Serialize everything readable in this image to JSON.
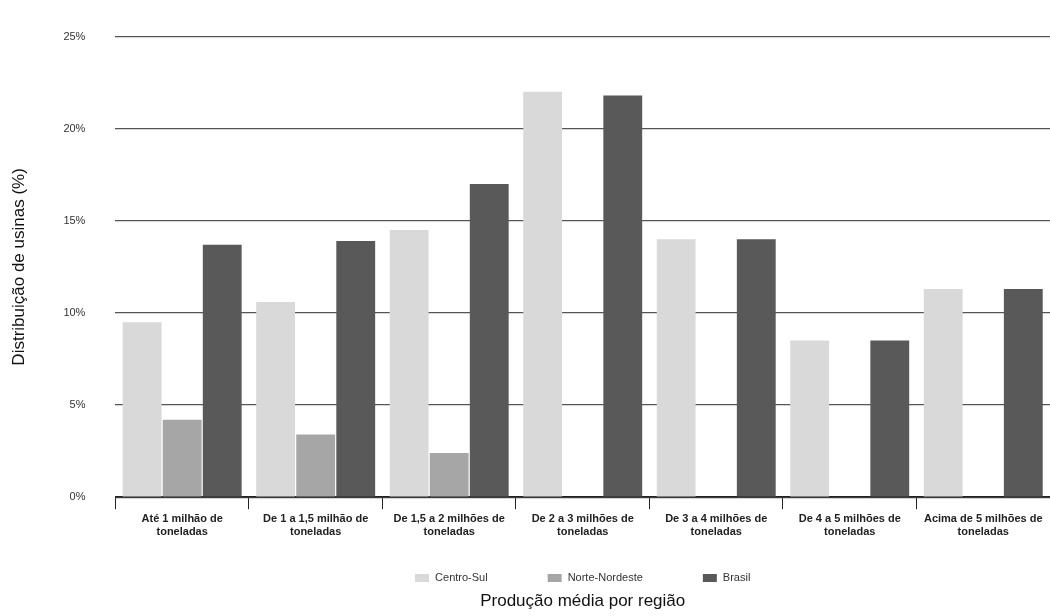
{
  "chart_data": {
    "type": "bar",
    "xlabel": "Produção média por região",
    "ylabel": "Distribuição de usinas (%)",
    "categories": [
      "Até 1 milhão de toneladas",
      "De 1 a 1,5 milhão de toneladas",
      "De 1,5 a 2 milhões de toneladas",
      "De 2 a 3 milhões de toneladas",
      "De 3 a 4 milhões de toneladas",
      "De 4 a 5 milhões de toneladas",
      "Acima de 5 milhões de toneladas"
    ],
    "series": [
      {
        "name": "Centro-Sul",
        "color": "#d9d9d9",
        "values": [
          9.5,
          10.6,
          14.5,
          22.0,
          14.0,
          8.5,
          11.3
        ]
      },
      {
        "name": "Norte-Nordeste",
        "color": "#a6a6a6",
        "values": [
          4.2,
          3.4,
          2.4,
          null,
          null,
          null,
          null
        ]
      },
      {
        "name": "Brasil",
        "color": "#595959",
        "values": [
          13.7,
          13.9,
          17.0,
          21.8,
          14.0,
          8.5,
          11.3
        ]
      }
    ],
    "ylim": [
      0,
      25
    ],
    "yticks": [
      {
        "value": 0,
        "label": "0%"
      },
      {
        "value": 5,
        "label": "5%"
      },
      {
        "value": 10,
        "label": "10%"
      },
      {
        "value": 15,
        "label": "15%"
      },
      {
        "value": 20,
        "label": "20%"
      },
      {
        "value": 25,
        "label": "25%"
      }
    ],
    "grid": "y",
    "legend": "bottom"
  }
}
